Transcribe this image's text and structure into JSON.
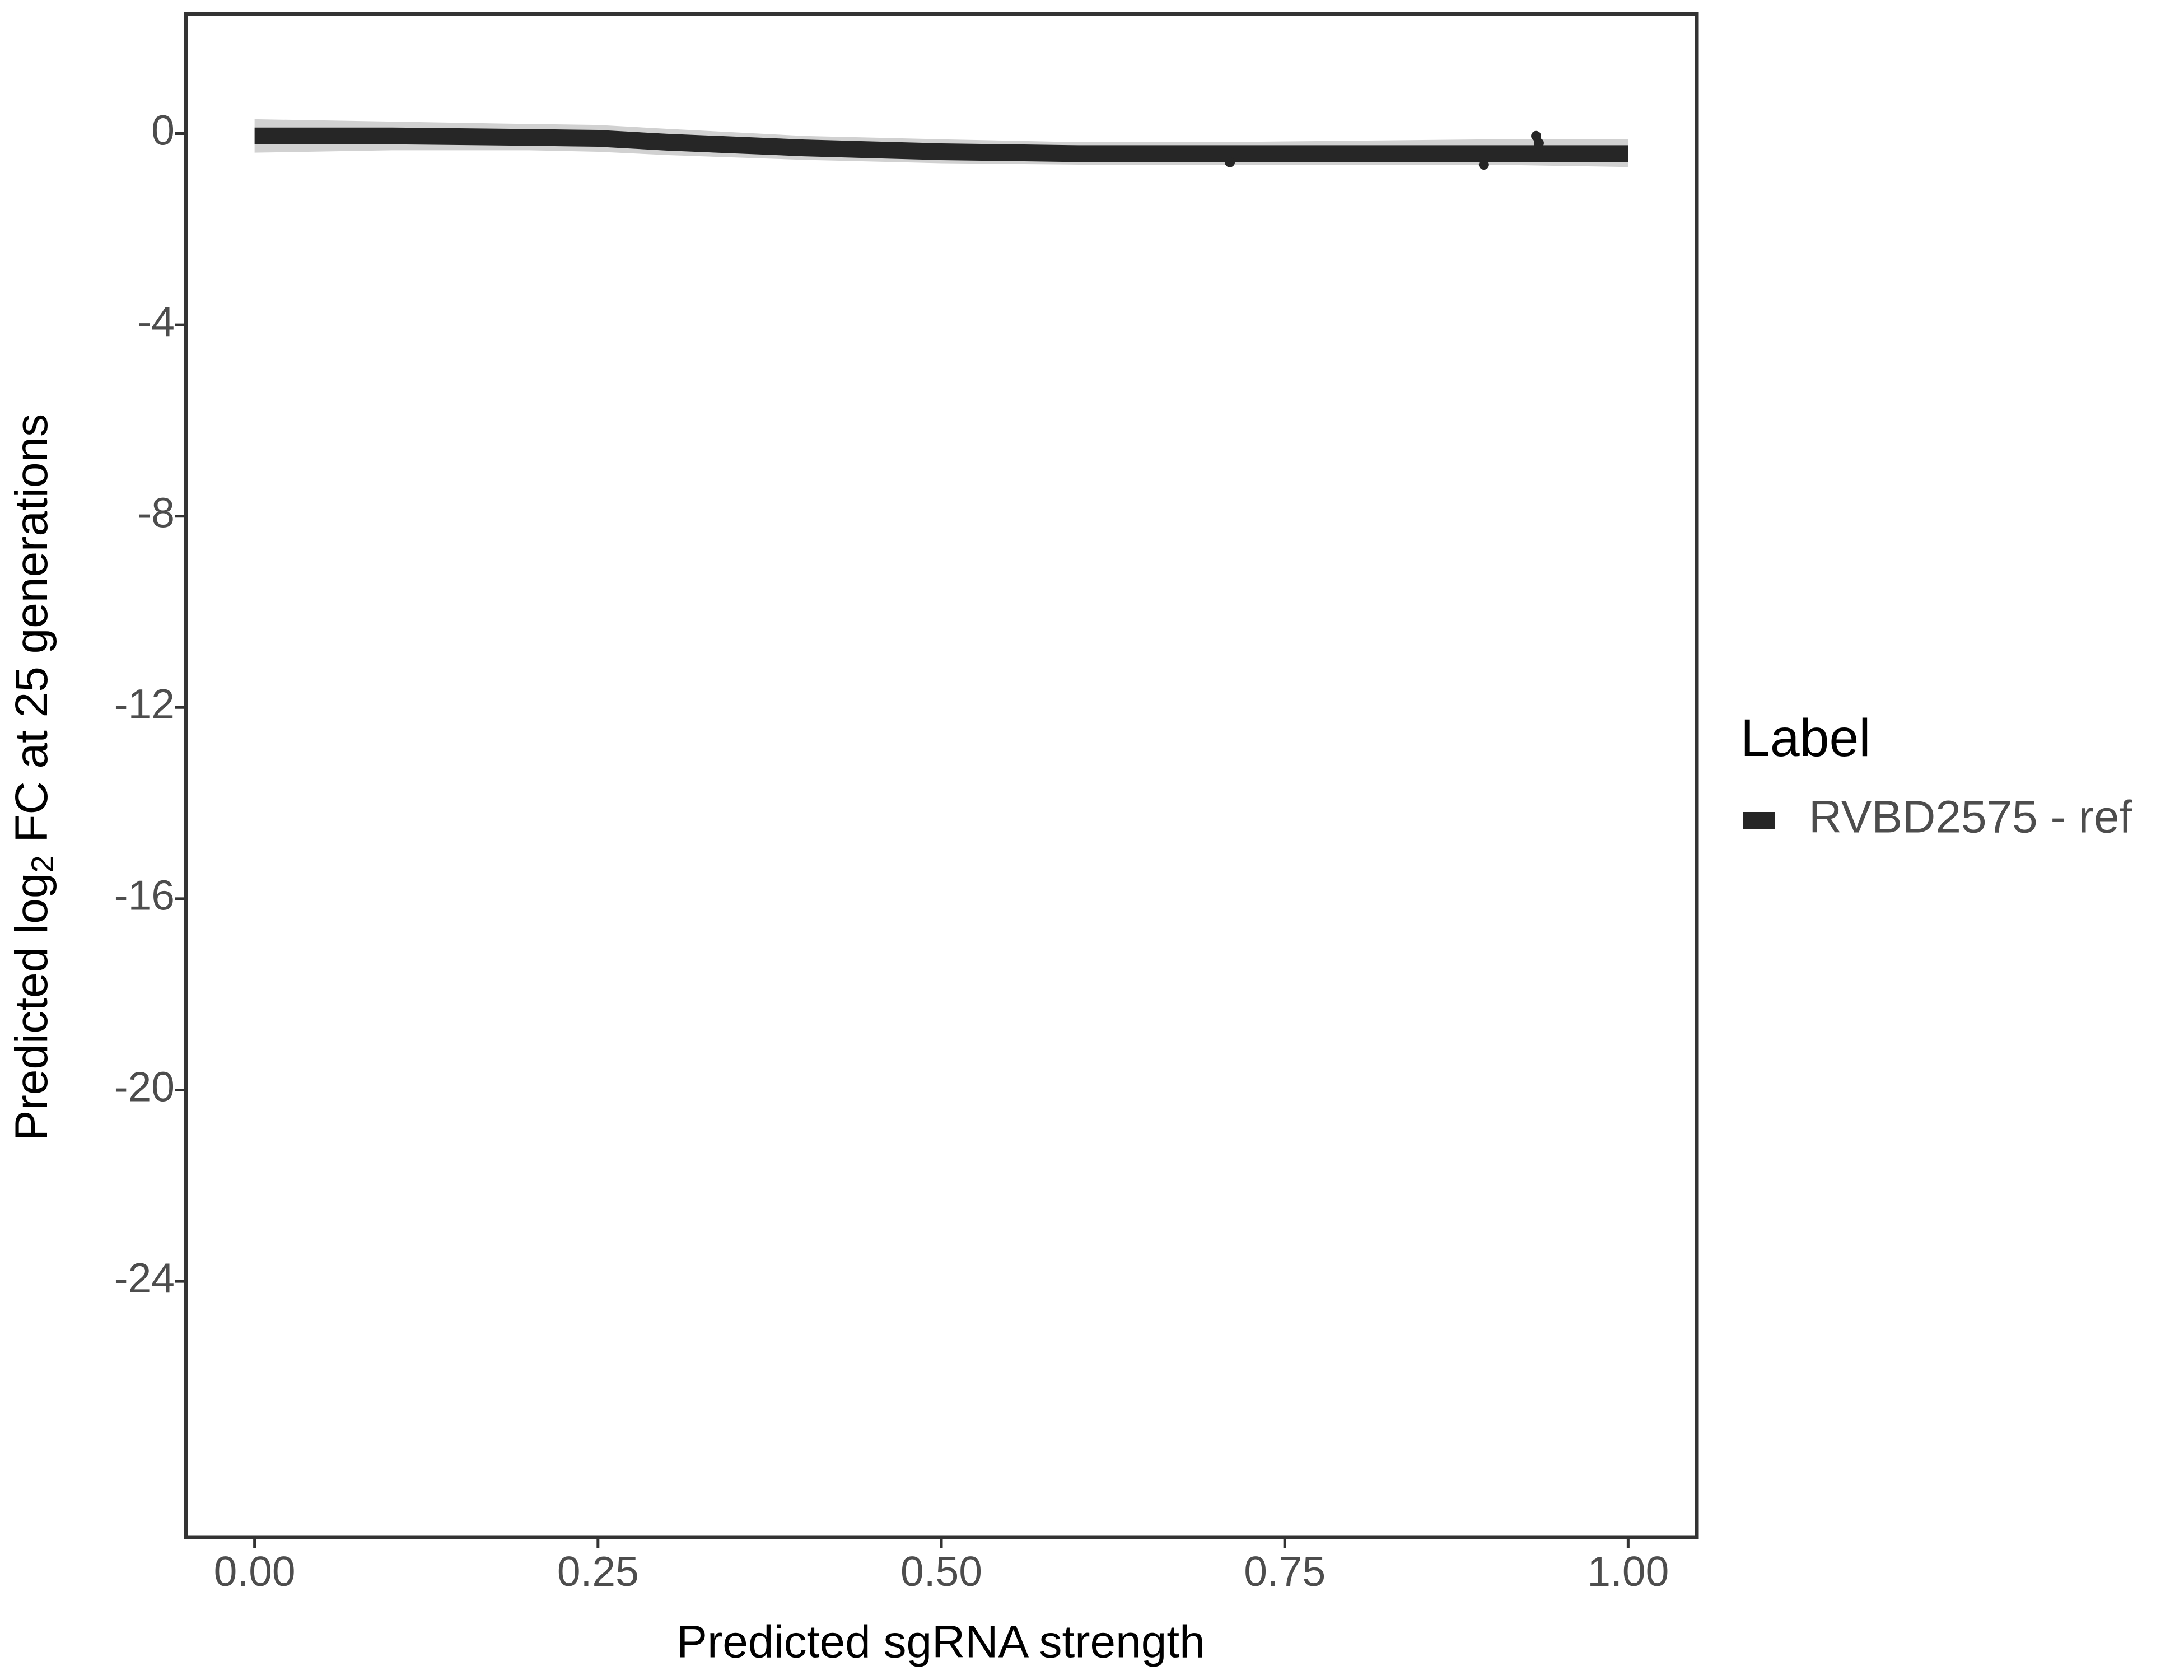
{
  "chart_data": {
    "type": "line",
    "x_label": "Predicted sgRNA strength",
    "y_label": {
      "before": "Predicted  log",
      "subscript": "2",
      "after": " FC at 25 generations"
    },
    "xlim": [
      -0.05,
      1.05
    ],
    "xticks": [
      {
        "value": 0,
        "label": "0.00"
      },
      {
        "value": 0.25,
        "label": "0.25"
      },
      {
        "value": 0.5,
        "label": "0.50"
      },
      {
        "value": 0.75,
        "label": "0.75"
      },
      {
        "value": 1,
        "label": "1.00"
      }
    ],
    "ylim": [
      -29.35,
      2.5
    ],
    "yticks": [
      0,
      -4,
      -8,
      -12,
      -16,
      -20,
      -24
    ],
    "legend_title": "Label",
    "legend_position": "right",
    "series": [
      {
        "name": "RVBD2575 - ref",
        "color": "#262626",
        "x": [
          0,
          0.1,
          0.2,
          0.25,
          0.3,
          0.4,
          0.5,
          0.6,
          0.7,
          0.8,
          0.9,
          1.0
        ],
        "values": [
          -0.05,
          -0.05,
          -0.08,
          -0.1,
          -0.18,
          -0.3,
          -0.38,
          -0.42,
          -0.42,
          -0.42,
          -0.42,
          -0.42
        ],
        "lower": [
          -0.4,
          -0.35,
          -0.35,
          -0.38,
          -0.45,
          -0.55,
          -0.62,
          -0.65,
          -0.65,
          -0.65,
          -0.65,
          -0.7
        ],
        "upper": [
          0.3,
          0.25,
          0.2,
          0.18,
          0.1,
          -0.05,
          -0.12,
          -0.18,
          -0.18,
          -0.15,
          -0.12,
          -0.12
        ],
        "points_x": [
          0.71,
          0.895,
          0.933,
          0.935
        ],
        "points_y": [
          -0.6,
          -0.65,
          -0.05,
          -0.2
        ]
      }
    ]
  }
}
